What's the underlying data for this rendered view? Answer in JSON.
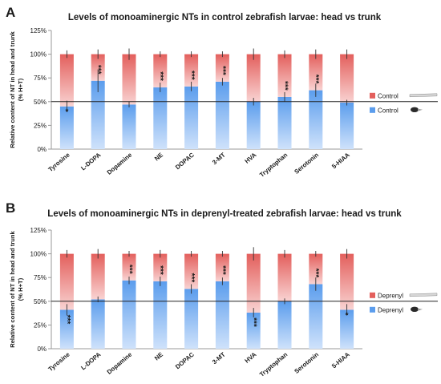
{
  "colors": {
    "bar_bottom_light": "#cfe2fb",
    "bar_bottom_dark": "#5b9ded",
    "bar_top_light": "#f9d3d2",
    "bar_top_dark": "#e35f5c",
    "axis": "#9a9a9a",
    "reference_line": "#222222",
    "text": "#1a1a1a"
  },
  "chart_data": [
    {
      "panel_label": "A",
      "type": "bar",
      "stacked": true,
      "title": "Levels of monoaminergic NTs in control zebrafish larvae: head vs trunk",
      "ylabel_line1": "Relative content of NT in head and trunk",
      "ylabel_line2": "(% H+T)",
      "ylim": [
        0,
        125
      ],
      "ytick_labels": [
        "0%",
        "25%",
        "50%",
        "75%",
        "100%",
        "125%"
      ],
      "yticks": [
        0,
        25,
        50,
        75,
        100,
        125
      ],
      "reference_line": 50,
      "categories": [
        "Tyrosine",
        "L-DOPA",
        "Dopamine",
        "NE",
        "DOPAC",
        "3-MT",
        "HVA",
        "Tryptophan",
        "Serotonin",
        "5-HIAA"
      ],
      "series": [
        {
          "key": "head",
          "values": [
            45,
            72,
            47,
            65,
            66,
            71,
            50,
            55,
            62,
            49
          ]
        },
        {
          "key": "trunk",
          "values": [
            55,
            28,
            53,
            35,
            34,
            29,
            50,
            45,
            38,
            51
          ]
        }
      ],
      "error_top": [
        4,
        5,
        6,
        3,
        3,
        3,
        6,
        4,
        5,
        5
      ],
      "error_mid": [
        6,
        12,
        3,
        5,
        5,
        4,
        4,
        5,
        7,
        3
      ],
      "significance": [
        "*",
        "***",
        "",
        "***",
        "***",
        "***",
        "",
        "***",
        "***",
        ""
      ],
      "legend": [
        "Control",
        "Control"
      ],
      "legend_placement": "right"
    },
    {
      "panel_label": "B",
      "type": "bar",
      "stacked": true,
      "title": "Levels of monoaminergic NTs in deprenyl-treated zebrafish larvae: head vs trunk",
      "ylabel_line1": "Relative content of NT in head and trunk",
      "ylabel_line2": "(% H+T)",
      "ylim": [
        0,
        125
      ],
      "ytick_labels": [
        "0%",
        "25%",
        "50%",
        "75%",
        "100%",
        "125%"
      ],
      "yticks": [
        0,
        25,
        50,
        75,
        100,
        125
      ],
      "reference_line": 50,
      "categories": [
        "Tyrosine",
        "L-DOPA",
        "Dopamine",
        "NE",
        "DOPAC",
        "3-MT",
        "HVA",
        "Tryptophan",
        "Serotonin",
        "5-HIAA"
      ],
      "series": [
        {
          "key": "head",
          "values": [
            41,
            52,
            72,
            71,
            63,
            71,
            38,
            50,
            68,
            41
          ]
        },
        {
          "key": "trunk",
          "values": [
            59,
            48,
            28,
            29,
            37,
            29,
            62,
            50,
            32,
            59
          ]
        }
      ],
      "error_top": [
        4,
        5,
        3,
        4,
        3,
        3,
        7,
        4,
        3,
        5
      ],
      "error_mid": [
        6,
        3,
        4,
        5,
        5,
        4,
        5,
        3,
        7,
        6
      ],
      "significance": [
        "***",
        "",
        "***",
        "***",
        "***",
        "***",
        "***",
        "",
        "***",
        "*"
      ],
      "legend": [
        "Deprenyl",
        "Deprenyl"
      ],
      "legend_placement": "right"
    }
  ]
}
